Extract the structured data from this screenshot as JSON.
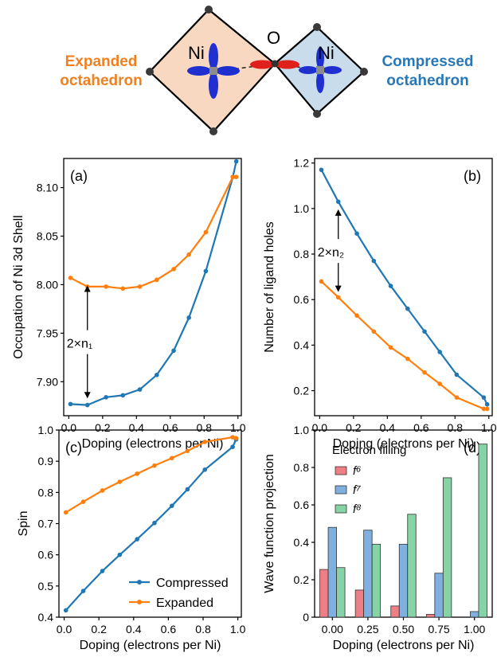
{
  "diagram": {
    "left_label_line1": "Expanded",
    "left_label_line2": "octahedron",
    "right_label_line1": "Compressed",
    "right_label_line2": "octahedron",
    "atom_ni_left": "Ni",
    "atom_o": "O",
    "atom_ni_right": "Ni",
    "colors": {
      "expanded_fill": "#f8d8c0",
      "compressed_fill": "#c9dcec",
      "orbital_blue": "#1f2fd0",
      "orbital_red": "#e0201c",
      "atom_gray": "#8c8c8c"
    }
  },
  "colors": {
    "compressed": "#1f77b4",
    "expanded": "#ff7f0e",
    "f6": "#ef7f86",
    "f7": "#7fb0e0",
    "f8": "#86d3a6",
    "label_orange": "#f08020",
    "label_blue": "#2878b8"
  },
  "chart_data": [
    {
      "id": "a",
      "type": "line",
      "panel_label": "(a)",
      "xlabel": "Doping (electrons per Ni)",
      "ylabel": "Occupation of Ni 3d Shell",
      "xlim": [
        -0.03,
        1.02
      ],
      "ylim": [
        7.865,
        8.13
      ],
      "xticks": [
        0.0,
        0.2,
        0.4,
        0.6,
        0.8,
        1.0
      ],
      "xtick_labels": [
        "0.0",
        "0.2",
        "0.4",
        "0.6",
        "0.8",
        "1.0"
      ],
      "yticks": [
        7.9,
        7.95,
        8.0,
        8.05,
        8.1
      ],
      "ytick_labels": [
        "7.90",
        "7.95",
        "8.00",
        "8.05",
        "8.10"
      ],
      "x": [
        0.01,
        0.11,
        0.22,
        0.32,
        0.42,
        0.52,
        0.62,
        0.71,
        0.81,
        0.97,
        0.99
      ],
      "series": [
        {
          "key": "compressed",
          "values": [
            7.877,
            7.876,
            7.884,
            7.886,
            7.892,
            7.907,
            7.932,
            7.966,
            8.014,
            8.111,
            8.127
          ]
        },
        {
          "key": "expanded",
          "values": [
            8.007,
            7.998,
            7.998,
            7.996,
            7.998,
            8.005,
            8.016,
            8.031,
            8.054,
            8.111,
            8.111
          ]
        }
      ],
      "annotation": {
        "text": "2×n₁",
        "x": 0.11,
        "y_text": 7.94,
        "arrow_up_to": 8.0,
        "arrow_down_to": 7.882
      }
    },
    {
      "id": "b",
      "type": "line",
      "panel_label": "(b)",
      "xlabel": "Doping (electrons per Ni)",
      "ylabel": "Number of ligand holes",
      "xlim": [
        -0.03,
        1.02
      ],
      "ylim": [
        0.09,
        1.22
      ],
      "xticks": [
        0.0,
        0.2,
        0.4,
        0.6,
        0.8,
        1.0
      ],
      "xtick_labels": [
        "0.0",
        "0.2",
        "0.4",
        "0.6",
        "0.8",
        "1.0"
      ],
      "yticks": [
        0.2,
        0.4,
        0.6,
        0.8,
        1.0,
        1.2
      ],
      "ytick_labels": [
        "0.2",
        "0.4",
        "0.6",
        "0.8",
        "1.0",
        "1.2"
      ],
      "x": [
        0.01,
        0.11,
        0.22,
        0.32,
        0.42,
        0.52,
        0.62,
        0.71,
        0.81,
        0.97,
        0.99
      ],
      "series": [
        {
          "key": "compressed",
          "values": [
            1.17,
            1.03,
            0.89,
            0.77,
            0.66,
            0.56,
            0.46,
            0.37,
            0.27,
            0.17,
            0.14
          ]
        },
        {
          "key": "expanded",
          "values": [
            0.68,
            0.61,
            0.53,
            0.46,
            0.39,
            0.34,
            0.28,
            0.23,
            0.17,
            0.12,
            0.12
          ]
        }
      ],
      "annotation": {
        "text": "2×n₂",
        "x": 0.11,
        "y_text": 0.81,
        "arrow_up_to": 1.0,
        "arrow_down_to": 0.63
      }
    },
    {
      "id": "c",
      "type": "line",
      "panel_label": "(c)",
      "xlabel": "Doping (electrons per Ni)",
      "ylabel": "Spin",
      "xlim": [
        -0.03,
        1.02
      ],
      "ylim": [
        0.4,
        1.0
      ],
      "xticks": [
        0.0,
        0.2,
        0.4,
        0.6,
        0.8,
        1.0
      ],
      "xtick_labels": [
        "0.0",
        "0.2",
        "0.4",
        "0.6",
        "0.8",
        "1.0"
      ],
      "yticks": [
        0.4,
        0.5,
        0.6,
        0.7,
        0.8,
        0.9,
        1.0
      ],
      "ytick_labels": [
        "0.4",
        "0.5",
        "0.6",
        "0.7",
        "0.8",
        "0.9",
        "1.0"
      ],
      "x": [
        0.01,
        0.11,
        0.22,
        0.32,
        0.42,
        0.52,
        0.62,
        0.71,
        0.81,
        0.97,
        0.99
      ],
      "series": [
        {
          "key": "compressed",
          "name": "Compressed",
          "values": [
            0.422,
            0.484,
            0.548,
            0.6,
            0.65,
            0.702,
            0.757,
            0.81,
            0.873,
            0.946,
            0.97
          ]
        },
        {
          "key": "expanded",
          "name": "Expanded",
          "values": [
            0.736,
            0.77,
            0.806,
            0.834,
            0.86,
            0.886,
            0.91,
            0.933,
            0.962,
            0.977,
            0.974
          ]
        }
      ],
      "legend": {
        "position": "bottom-right",
        "entries": [
          "Compressed",
          "Expanded"
        ]
      }
    },
    {
      "id": "d",
      "type": "bar",
      "panel_label": "(d)",
      "xlabel": "Doping (electrons per Ni)",
      "ylabel": "Wave function projection",
      "ylim": [
        0.0,
        1.0
      ],
      "yticks": [
        0.0,
        0.2,
        0.4,
        0.6,
        0.8,
        1.0
      ],
      "ytick_labels": [
        "0",
        "0.2",
        "0.4",
        "0.6",
        "0.8",
        "1.0"
      ],
      "categories": [
        "0.00",
        "0.25",
        "0.50",
        "0.75",
        "1.00"
      ],
      "series": [
        {
          "key": "f6",
          "name": "f⁶",
          "values": [
            0.255,
            0.145,
            0.06,
            0.015,
            0.0
          ]
        },
        {
          "key": "f7",
          "name": "f⁷",
          "values": [
            0.48,
            0.465,
            0.39,
            0.235,
            0.03
          ]
        },
        {
          "key": "f8",
          "name": "f⁸",
          "values": [
            0.265,
            0.39,
            0.55,
            0.745,
            0.925
          ]
        }
      ],
      "legend": {
        "title": "Electron filling",
        "position": "top-left",
        "entries": [
          "f⁶",
          "f⁷",
          "f⁸"
        ]
      }
    }
  ]
}
